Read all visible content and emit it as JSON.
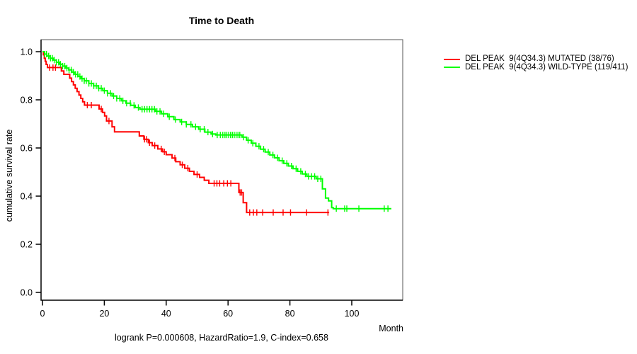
{
  "title": "Time to Death",
  "y_axis": {
    "label": "cumulative survival rate",
    "tick_labels": [
      "0.0",
      "0.2",
      "0.4",
      "0.6",
      "0.8",
      "1.0"
    ],
    "tick_values": [
      0.0,
      0.2,
      0.4,
      0.6,
      0.8,
      1.0
    ]
  },
  "x_axis": {
    "label": "Month",
    "tick_labels": [
      "0",
      "20",
      "40",
      "60",
      "80",
      "100"
    ],
    "tick_values": [
      0,
      20,
      40,
      60,
      80,
      100
    ]
  },
  "footer": "logrank P=0.000608, HazardRatio=1.9, C-index=0.658",
  "legend": {
    "position": "right",
    "items": [
      {
        "label": "DEL PEAK  9(4Q34.3) MUTATED (38/76)",
        "color": "#ff0000"
      },
      {
        "label": "DEL PEAK  9(4Q34.3) WILD-TYPE (119/411)",
        "color": "#00ff00"
      }
    ]
  },
  "chart_data": {
    "type": "line",
    "subtype": "kaplan_meier_step",
    "title": "Time to Death",
    "xlabel": "Month",
    "ylabel": "cumulative survival rate",
    "xlim": [
      0,
      116.5
    ],
    "ylim": [
      0.0,
      1.0
    ],
    "grid": false,
    "legend_position": "right-outside",
    "annotation": "logrank P=0.000608, HazardRatio=1.9, C-index=0.658",
    "series": [
      {
        "name": "DEL PEAK  9(4Q34.3) MUTATED (38/76)",
        "events": "38/76",
        "color": "#ff0000",
        "steps": [
          [
            0,
            1.0
          ],
          [
            0.3,
            0.987
          ],
          [
            0.6,
            0.973
          ],
          [
            0.9,
            0.96
          ],
          [
            1.2,
            0.947
          ],
          [
            1.6,
            0.934
          ],
          [
            6.1,
            0.92
          ],
          [
            6.9,
            0.906
          ],
          [
            8.8,
            0.89
          ],
          [
            9.4,
            0.876
          ],
          [
            10.0,
            0.862
          ],
          [
            10.6,
            0.848
          ],
          [
            11.2,
            0.834
          ],
          [
            11.8,
            0.82
          ],
          [
            12.4,
            0.806
          ],
          [
            13.0,
            0.792
          ],
          [
            13.6,
            0.778
          ],
          [
            18.3,
            0.762
          ],
          [
            19.4,
            0.748
          ],
          [
            20.1,
            0.733
          ],
          [
            20.7,
            0.712
          ],
          [
            22.5,
            0.688
          ],
          [
            23.3,
            0.667
          ],
          [
            31.3,
            0.65
          ],
          [
            32.8,
            0.636
          ],
          [
            34.2,
            0.622
          ],
          [
            35.5,
            0.61
          ],
          [
            37.3,
            0.596
          ],
          [
            38.8,
            0.584
          ],
          [
            40.0,
            0.572
          ],
          [
            41.9,
            0.558
          ],
          [
            43.1,
            0.543
          ],
          [
            44.5,
            0.53
          ],
          [
            46.0,
            0.516
          ],
          [
            47.5,
            0.503
          ],
          [
            49.0,
            0.49
          ],
          [
            50.8,
            0.478
          ],
          [
            52.3,
            0.466
          ],
          [
            53.8,
            0.453
          ],
          [
            63.5,
            0.415
          ],
          [
            64.9,
            0.373
          ],
          [
            66.0,
            0.332
          ],
          [
            92.7,
            0.332
          ]
        ],
        "censor_marks": [
          2.3,
          3.4,
          4.2,
          14.5,
          15.8,
          19.0,
          21.5,
          33.0,
          33.6,
          34.6,
          36.3,
          38.4,
          39.4,
          42.8,
          45.2,
          47.0,
          50.0,
          55.5,
          56.4,
          57.3,
          58.6,
          59.8,
          60.9,
          63.9,
          64.4,
          67.0,
          68.2,
          69.3,
          71.2,
          74.6,
          77.8,
          80.2,
          85.4,
          92.3
        ]
      },
      {
        "name": "DEL PEAK  9(4Q34.3) WILD-TYPE (119/411)",
        "events": "119/411",
        "color": "#00ff00",
        "steps": [
          [
            0,
            1.0
          ],
          [
            0.7,
            0.99
          ],
          [
            1.4,
            0.982
          ],
          [
            2.5,
            0.973
          ],
          [
            3.5,
            0.965
          ],
          [
            4.5,
            0.956
          ],
          [
            5.5,
            0.948
          ],
          [
            6.5,
            0.94
          ],
          [
            7.5,
            0.932
          ],
          [
            8.5,
            0.924
          ],
          [
            9.5,
            0.915
          ],
          [
            10.5,
            0.906
          ],
          [
            11.5,
            0.897
          ],
          [
            12.5,
            0.888
          ],
          [
            13.5,
            0.879
          ],
          [
            15.0,
            0.868
          ],
          [
            16.5,
            0.858
          ],
          [
            18.0,
            0.848
          ],
          [
            19.5,
            0.838
          ],
          [
            21.0,
            0.827
          ],
          [
            22.5,
            0.816
          ],
          [
            24.0,
            0.806
          ],
          [
            25.5,
            0.796
          ],
          [
            27.0,
            0.786
          ],
          [
            28.5,
            0.777
          ],
          [
            30.0,
            0.768
          ],
          [
            31.5,
            0.761
          ],
          [
            36.5,
            0.752
          ],
          [
            38.5,
            0.742
          ],
          [
            40.5,
            0.73
          ],
          [
            42.5,
            0.718
          ],
          [
            44.5,
            0.708
          ],
          [
            46.5,
            0.698
          ],
          [
            48.5,
            0.688
          ],
          [
            50.5,
            0.678
          ],
          [
            52.5,
            0.666
          ],
          [
            54.5,
            0.658
          ],
          [
            56.0,
            0.654
          ],
          [
            64.5,
            0.645
          ],
          [
            66.0,
            0.632
          ],
          [
            67.5,
            0.62
          ],
          [
            69.0,
            0.607
          ],
          [
            70.5,
            0.595
          ],
          [
            72.0,
            0.583
          ],
          [
            73.5,
            0.571
          ],
          [
            75.0,
            0.559
          ],
          [
            76.5,
            0.547
          ],
          [
            78.0,
            0.536
          ],
          [
            79.5,
            0.525
          ],
          [
            81.0,
            0.514
          ],
          [
            82.5,
            0.503
          ],
          [
            84.0,
            0.492
          ],
          [
            85.5,
            0.482
          ],
          [
            88.5,
            0.472
          ],
          [
            90.5,
            0.43
          ],
          [
            91.5,
            0.392
          ],
          [
            92.5,
            0.38
          ],
          [
            93.5,
            0.352
          ],
          [
            94.0,
            0.348
          ],
          [
            112.8,
            0.348
          ]
        ],
        "censor_marks": [
          0.7,
          1.3,
          2.0,
          2.6,
          3.2,
          3.8,
          4.5,
          5.2,
          5.8,
          6.5,
          7.2,
          7.9,
          8.6,
          9.3,
          10.0,
          10.7,
          11.4,
          12.1,
          12.8,
          13.5,
          14.2,
          15.0,
          15.8,
          16.6,
          17.4,
          18.2,
          19.0,
          20.0,
          21.0,
          22.0,
          23.0,
          24.0,
          25.0,
          26.0,
          27.2,
          28.4,
          29.6,
          31.0,
          32.2,
          33.0,
          33.8,
          34.6,
          35.4,
          36.2,
          37.0,
          38.0,
          39.2,
          41.0,
          43.0,
          45.0,
          46.5,
          48.0,
          49.5,
          51.0,
          52.3,
          53.5,
          55.0,
          56.5,
          57.5,
          58.3,
          59.0,
          59.6,
          60.2,
          60.8,
          61.4,
          62.0,
          62.6,
          63.2,
          63.8,
          65.0,
          66.5,
          68.0,
          70.0,
          71.5,
          73.0,
          74.5,
          76.0,
          77.5,
          79.0,
          80.5,
          82.0,
          83.5,
          85.0,
          86.0,
          87.0,
          88.0,
          89.0,
          90.0,
          95.0,
          97.7,
          98.4,
          102.3,
          110.5,
          111.7
        ]
      }
    ]
  }
}
